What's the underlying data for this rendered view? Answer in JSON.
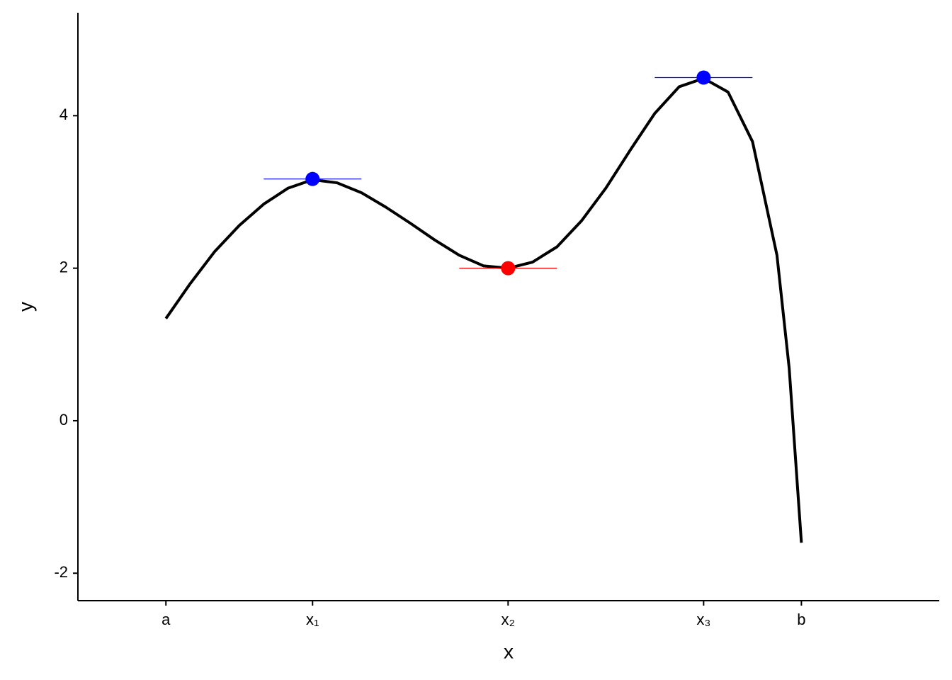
{
  "chart_data": {
    "type": "line",
    "x_label": "x",
    "y_label": "y",
    "xlim": [
      -0.9,
      7.91
    ],
    "ylim": [
      -2.36,
      5.35
    ],
    "xticks": [
      {
        "value": 0,
        "label": "a"
      },
      {
        "value": 1.5,
        "label": "x₁"
      },
      {
        "value": 3.5,
        "label": "x₂"
      },
      {
        "value": 5.5,
        "label": "x₃"
      },
      {
        "value": 6.5,
        "label": "b"
      }
    ],
    "yticks": [
      -2,
      0,
      2,
      4
    ],
    "x": [
      0,
      0.25,
      0.5,
      0.75,
      1.0,
      1.25,
      1.5,
      1.75,
      2.0,
      2.25,
      2.5,
      2.75,
      3.0,
      3.25,
      3.5,
      3.75,
      4.0,
      4.25,
      4.5,
      4.75,
      5.0,
      5.25,
      5.5,
      5.75,
      6.0,
      6.25,
      6.375,
      6.5
    ],
    "series": [
      {
        "color": "#000000",
        "values": [
          1.34,
          1.8,
          2.22,
          2.56,
          2.84,
          3.05,
          3.16,
          3.12,
          2.99,
          2.8,
          2.59,
          2.37,
          2.17,
          2.03,
          2.0,
          2.08,
          2.28,
          2.62,
          3.05,
          3.55,
          4.03,
          4.38,
          4.49,
          4.31,
          3.66,
          2.17,
          0.69,
          -1.6
        ]
      }
    ],
    "points": {
      "x": [
        1.5,
        3.5,
        5.5
      ],
      "values": [
        3.17,
        2.0,
        4.5
      ],
      "colors": [
        "#0000ff",
        "#ff0000",
        "#0000ff"
      ]
    }
  }
}
